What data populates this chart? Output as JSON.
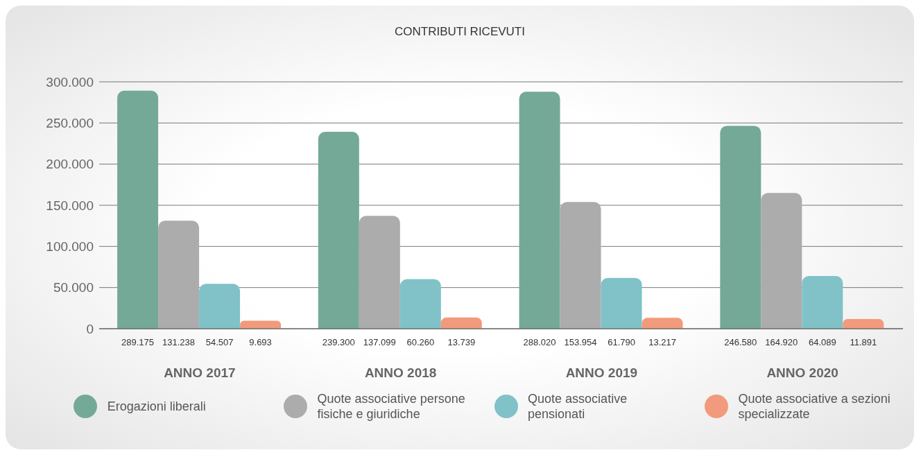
{
  "chart_data": {
    "type": "bar",
    "title": "CONTRIBUTI RICEVUTI",
    "categories": [
      "ANNO 2017",
      "ANNO 2018",
      "ANNO 2019",
      "ANNO 2020"
    ],
    "series": [
      {
        "name": "Erogazioni liberali",
        "color": "#74a998",
        "values": [
          289175,
          239300,
          288020,
          246580
        ],
        "value_labels": [
          "289.175",
          "239.300",
          "288.020",
          "246.580"
        ]
      },
      {
        "name": "Quote associative persone fisiche e giuridiche",
        "color": "#acacac",
        "values": [
          131238,
          137099,
          153954,
          164920
        ],
        "value_labels": [
          "131.238",
          "137.099",
          "153.954",
          "164.920"
        ]
      },
      {
        "name": "Quote associative pensionati",
        "color": "#80c2c8",
        "values": [
          54507,
          60260,
          61790,
          64089
        ],
        "value_labels": [
          "54.507",
          "60.260",
          "61.790",
          "64.089"
        ]
      },
      {
        "name": "Quote associative a sezioni specializzate",
        "color": "#f29a7c",
        "values": [
          9693,
          13739,
          13217,
          11891
        ],
        "value_labels": [
          "9.693",
          "13.739",
          "13.217",
          "11.891"
        ]
      }
    ],
    "ylim": [
      0,
      300000
    ],
    "yticks": [
      0,
      {
        "value": 50000,
        "label": "50.000"
      },
      {
        "value": 100000,
        "label": "100.000"
      },
      {
        "value": 150000,
        "label": "150.000"
      },
      {
        "value": 200000,
        "label": "200.000"
      },
      {
        "value": 250000,
        "label": "250.000"
      },
      {
        "value": 300000,
        "label": "300.000"
      }
    ],
    "grid": "y",
    "legend": "bottom"
  }
}
